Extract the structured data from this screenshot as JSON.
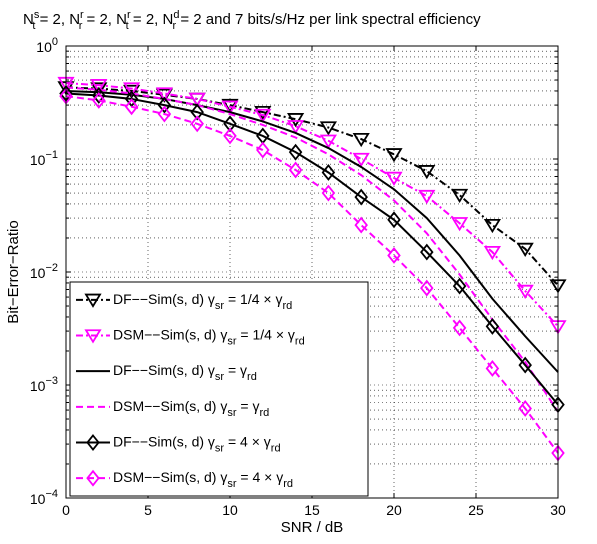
{
  "chart_data": {
    "type": "line",
    "title": "N_t^s = 2, N_r^r = 2, N_t^r = 2, N_r^d = 2 and 7 bits/s/Hz per link spectral efficiency",
    "title_parts": {
      "n1": "N",
      "n1_sup": "s",
      "n1_sub": "t",
      "n1_eq": " = 2, ",
      "n2": "N",
      "n2_sup": "r",
      "n2_sub": "r",
      "n2_eq": " = 2, ",
      "n3": "N",
      "n3_sup": "r",
      "n3_sub": "t",
      "n3_eq": " = 2, ",
      "n4": "N",
      "n4_sup": "d",
      "n4_sub": "r",
      "n4_tail": " = 2 and 7 bits/s/Hz per link spectral efficiency"
    },
    "xlabel": "SNR / dB",
    "ylabel": "Bit−Error−Ratio",
    "xlim": [
      0,
      30
    ],
    "ylim": [
      0.0001,
      1
    ],
    "yscale": "log",
    "grid": true,
    "legend_position": "bottom-left",
    "x_ticks": [
      "0",
      "5",
      "10",
      "15",
      "20",
      "25",
      "30"
    ],
    "x_tick_values": [
      0,
      5,
      10,
      15,
      20,
      25,
      30
    ],
    "y_ticks": [
      {
        "value": 1,
        "base": "10",
        "exp": "0"
      },
      {
        "value": 0.1,
        "base": "10",
        "exp": "−1"
      },
      {
        "value": 0.01,
        "base": "10",
        "exp": "−2"
      },
      {
        "value": 0.001,
        "base": "10",
        "exp": "−3"
      },
      {
        "value": 0.0001,
        "base": "10",
        "exp": "−4"
      }
    ],
    "x": [
      0,
      2,
      4,
      6,
      8,
      10,
      12,
      14,
      16,
      18,
      20,
      22,
      24,
      26,
      28,
      30
    ],
    "series": [
      {
        "name": "DF−−Sim(s, d)  γsr = 1/4 × γrd",
        "legend_prefix": "DF−−Sim(s, d)  γ",
        "legend_sub1": "sr",
        "legend_mid": " = 1/4 × γ",
        "legend_sub2": "rd",
        "color": "#000000",
        "dash": "dashdot",
        "marker": "triangle-down",
        "values": [
          0.43,
          0.42,
          0.4,
          0.37,
          0.34,
          0.3,
          0.26,
          0.225,
          0.19,
          0.15,
          0.11,
          0.078,
          0.048,
          0.026,
          0.016,
          0.0076
        ]
      },
      {
        "name": "DSM−−Sim(s, d) γsr = 1/4 × γrd",
        "legend_prefix": "DSM−−Sim(s, d) γ",
        "legend_sub1": "sr",
        "legend_mid": " = 1/4 × γ",
        "legend_sub2": "rd",
        "color": "#ff00ff",
        "dash": "dashdot",
        "marker": "triangle-down",
        "values": [
          0.47,
          0.45,
          0.42,
          0.38,
          0.34,
          0.29,
          0.245,
          0.195,
          0.145,
          0.1,
          0.068,
          0.047,
          0.027,
          0.015,
          0.0068,
          0.0033
        ]
      },
      {
        "name": "DF−−Sim(s, d) γsr = γrd",
        "legend_prefix": "DF−−Sim(s, d) γ",
        "legend_sub1": "sr",
        "legend_mid": " = γ",
        "legend_sub2": "rd",
        "color": "#000000",
        "dash": "solid",
        "marker": "none",
        "values": [
          0.4,
          0.39,
          0.37,
          0.34,
          0.3,
          0.26,
          0.215,
          0.17,
          0.125,
          0.085,
          0.054,
          0.03,
          0.014,
          0.0058,
          0.0027,
          0.0013
        ]
      },
      {
        "name": "DSM−−Sim(s, d) γsr = γrd",
        "legend_prefix": "DSM−−Sim(s, d) γ",
        "legend_sub1": "sr",
        "legend_mid": " = γ",
        "legend_sub2": "rd",
        "color": "#ff00ff",
        "dash": "dashed",
        "marker": "none",
        "values": [
          0.43,
          0.41,
          0.38,
          0.34,
          0.3,
          0.25,
          0.2,
          0.155,
          0.11,
          0.072,
          0.043,
          0.022,
          0.0095,
          0.0038,
          0.0016,
          0.00058
        ]
      },
      {
        "name": "DF−−Sim(s, d)  γsr = 4 × γrd",
        "legend_prefix": "DF−−Sim(s, d)  γ",
        "legend_sub1": "sr",
        "legend_mid": " = 4 × γ",
        "legend_sub2": "rd",
        "color": "#000000",
        "dash": "solid",
        "marker": "diamond",
        "values": [
          0.38,
          0.365,
          0.34,
          0.3,
          0.26,
          0.205,
          0.16,
          0.115,
          0.076,
          0.046,
          0.029,
          0.015,
          0.0075,
          0.0033,
          0.0015,
          0.00067
        ]
      },
      {
        "name": "DSM−−Sim(s, d) γsr = 4 × γrd",
        "legend_prefix": "DSM−−Sim(s, d) γ",
        "legend_sub1": "sr",
        "legend_mid": " = 4 × γ",
        "legend_sub2": "rd",
        "color": "#ff00ff",
        "dash": "dashed",
        "marker": "diamond",
        "values": [
          0.36,
          0.33,
          0.29,
          0.25,
          0.205,
          0.16,
          0.12,
          0.08,
          0.05,
          0.026,
          0.014,
          0.0072,
          0.0032,
          0.0014,
          0.00062,
          0.00025
        ]
      }
    ]
  }
}
